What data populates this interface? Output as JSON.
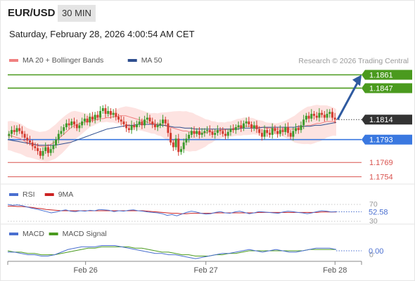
{
  "header": {
    "pair": "EUR/USD",
    "timeframe": "30 MIN",
    "datetime": "Saturday, February 28, 2026 4:00:54 AM CET"
  },
  "chart_data": [
    {
      "type": "candlestick",
      "legend": [
        {
          "label": "MA 20 + Bollinger Bands",
          "color": "#f08080"
        },
        {
          "label": "MA 50",
          "color": "#2f4f8f"
        }
      ],
      "watermark": "Research © 2026 Trading Central",
      "ylim": [
        1.175,
        1.1868
      ],
      "levels": [
        {
          "value": 1.1861,
          "label": "1.1861",
          "color": "#4a9a1e",
          "kind": "resistance"
        },
        {
          "value": 1.1847,
          "label": "1.1847",
          "color": "#4a9a1e",
          "kind": "resistance"
        },
        {
          "value": 1.1814,
          "label": "1.1814",
          "color": "#333333",
          "kind": "last"
        },
        {
          "value": 1.1793,
          "label": "1.1793",
          "color": "#3a78e0",
          "kind": "pivot"
        },
        {
          "value": 1.1769,
          "label": "1.1769",
          "color": "#d9534f",
          "kind": "support"
        },
        {
          "value": 1.1754,
          "label": "1.1754",
          "color": "#d9534f",
          "kind": "support"
        }
      ],
      "closes": [
        1.1799,
        1.1803,
        1.1801,
        1.1805,
        1.1802,
        1.1799,
        1.1795,
        1.1792,
        1.179,
        1.1786,
        1.1784,
        1.1781,
        1.1776,
        1.1781,
        1.1785,
        1.1779,
        1.1783,
        1.1787,
        1.1793,
        1.1799,
        1.1802,
        1.1806,
        1.181,
        1.1808,
        1.1812,
        1.1809,
        1.1805,
        1.1808,
        1.1812,
        1.1815,
        1.1811,
        1.1817,
        1.1814,
        1.1819,
        1.1816,
        1.1823,
        1.1826,
        1.182,
        1.1823,
        1.1819,
        1.1821,
        1.1817,
        1.1814,
        1.1812,
        1.1809,
        1.1805,
        1.1803,
        1.1808,
        1.1806,
        1.1809,
        1.1812,
        1.1808,
        1.1814,
        1.1816,
        1.1812,
        1.1809,
        1.1806,
        1.1808,
        1.181,
        1.1814,
        1.181,
        1.18,
        1.179,
        1.1785,
        1.1794,
        1.178,
        1.1783,
        1.179,
        1.1794,
        1.1798,
        1.1802,
        1.1799,
        1.1802,
        1.1798,
        1.18,
        1.1802,
        1.1803,
        1.1801,
        1.1798,
        1.18,
        1.1803,
        1.1802,
        1.1799,
        1.1797,
        1.1801,
        1.1804,
        1.1803,
        1.1806,
        1.1808,
        1.1805,
        1.181,
        1.1812,
        1.1809,
        1.1805,
        1.1808,
        1.1804,
        1.18,
        1.1796,
        1.1803,
        1.18,
        1.1798,
        1.1805,
        1.1802,
        1.1799,
        1.1803,
        1.1801,
        1.1806,
        1.18,
        1.1796,
        1.1802,
        1.1805,
        1.1803,
        1.1808,
        1.1814,
        1.1818,
        1.1815,
        1.182,
        1.1818,
        1.1816,
        1.1821,
        1.1819,
        1.1816,
        1.182,
        1.1822,
        1.1816,
        1.1814
      ],
      "ma20": [
        1.1797,
        1.1797,
        1.1796,
        1.1795,
        1.1794,
        1.1792,
        1.179,
        1.1789,
        1.1788,
        1.1787,
        1.1786,
        1.1786,
        1.1786,
        1.1787,
        1.1789,
        1.1791,
        1.1794,
        1.1797,
        1.18,
        1.1803,
        1.1806,
        1.1808,
        1.1809,
        1.181,
        1.1811,
        1.1812,
        1.1813,
        1.1813,
        1.1814,
        1.1815,
        1.1815,
        1.1816,
        1.1816,
        1.1817,
        1.1817,
        1.1818,
        1.1818,
        1.1818,
        1.1817,
        1.1816,
        1.1815,
        1.1814,
        1.1813,
        1.1812,
        1.1811,
        1.181,
        1.181,
        1.1809,
        1.1809,
        1.1808,
        1.1807,
        1.1806,
        1.1805,
        1.1804,
        1.1803,
        1.1802,
        1.1802,
        1.1801,
        1.1801,
        1.18,
        1.18,
        1.18,
        1.18,
        1.1801,
        1.1801,
        1.1802,
        1.1802,
        1.1803,
        1.1803,
        1.1804,
        1.1804,
        1.1805,
        1.1806,
        1.1806,
        1.1807,
        1.1807,
        1.1807,
        1.1807,
        1.1806,
        1.1806,
        1.1806,
        1.1805,
        1.1805,
        1.1805,
        1.1804,
        1.1804,
        1.1804,
        1.1804,
        1.1804,
        1.1804,
        1.1804,
        1.1805,
        1.1806,
        1.1807,
        1.1808,
        1.1808,
        1.1809,
        1.181,
        1.181,
        1.1811,
        1.1812,
        1.1812,
        1.1812,
        1.1811
      ],
      "ma50": [
        1.1793,
        1.1792,
        1.1791,
        1.179,
        1.1789,
        1.1788,
        1.1787,
        1.1787,
        1.1787,
        1.1787,
        1.1788,
        1.1789,
        1.179,
        1.1792,
        1.1794,
        1.1796,
        1.1798,
        1.18,
        1.1802,
        1.1804,
        1.1805,
        1.1806,
        1.1807,
        1.1808,
        1.1808,
        1.1809,
        1.1809,
        1.1809,
        1.1809,
        1.1808,
        1.1808,
        1.1807,
        1.1806,
        1.1806,
        1.1805,
        1.1805,
        1.1804,
        1.1804,
        1.1804,
        1.1804,
        1.1804,
        1.1804,
        1.1804,
        1.1804,
        1.1804,
        1.1805,
        1.1805,
        1.1805,
        1.1805,
        1.1806,
        1.1806,
        1.1806,
        1.1806,
        1.1806,
        1.1806,
        1.1806,
        1.1807,
        1.1807,
        1.1807,
        1.1808,
        1.1808,
        1.1809,
        1.181,
        1.1811
      ],
      "forecast": {
        "from": 1.1814,
        "to": 1.1861
      }
    },
    {
      "type": "line",
      "legend": [
        {
          "label": "RSI",
          "color": "#4a6fd0"
        },
        {
          "label": "9MA",
          "color": "#cc2222"
        }
      ],
      "ylim": [
        25,
        75
      ],
      "ticks": [
        {
          "value": 70,
          "label": "70"
        },
        {
          "value": 30,
          "label": "30"
        }
      ],
      "current": {
        "value": 52.58,
        "label": "52.58"
      },
      "rsi": [
        70,
        68,
        69,
        67,
        64,
        61,
        59,
        56,
        53,
        50,
        52,
        55,
        57,
        54,
        53,
        55,
        54,
        56,
        55,
        58,
        57,
        56,
        53,
        55,
        54,
        56,
        57,
        55,
        54,
        52,
        51,
        50,
        48,
        44,
        46,
        43,
        47,
        51,
        54,
        52,
        49,
        47,
        48,
        51,
        53,
        50,
        49,
        52,
        54,
        51,
        48,
        50,
        53,
        52,
        51,
        50,
        49,
        52,
        54,
        53,
        51,
        50,
        48,
        50,
        53,
        55,
        54,
        52,
        53
      ],
      "ma9": [
        66,
        66,
        65,
        65,
        64,
        63,
        61,
        60,
        58,
        57,
        56,
        55,
        55,
        55,
        55,
        55,
        55,
        55,
        55,
        55,
        55,
        55,
        55,
        55,
        55,
        55,
        55,
        55,
        55,
        54,
        53,
        52,
        51,
        50,
        49,
        49,
        48,
        48,
        49,
        49,
        49,
        49,
        49,
        50,
        50,
        50,
        50,
        50,
        50,
        50,
        50,
        50,
        51,
        51,
        51,
        51,
        51,
        51,
        51,
        51,
        51,
        51,
        51,
        51,
        51,
        52,
        52,
        52,
        52
      ]
    },
    {
      "type": "line",
      "legend": [
        {
          "label": "MACD",
          "color": "#4a6fd0"
        },
        {
          "label": "MACD Signal",
          "color": "#4a9a1e"
        }
      ],
      "ylim": [
        -0.0008,
        0.0008
      ],
      "ticks": [
        {
          "value": 0,
          "label": "0"
        }
      ],
      "current": {
        "value": 0.0,
        "label": "0.00"
      },
      "macd": [
        -0.0001,
        -0.0001,
        -0.0002,
        -0.0003,
        -0.0003,
        -0.0004,
        -0.0004,
        -0.0003,
        -0.0001,
        0.0001,
        0.0002,
        0.0003,
        0.0003,
        0.0003,
        0.0004,
        0.0004,
        0.0004,
        0.0003,
        0.0002,
        0.0001,
        0.0,
        -0.0001,
        -0.0002,
        -0.0002,
        -0.0003,
        -0.0003,
        -0.0004,
        -0.0005,
        -0.0006,
        -0.0005,
        -0.0004,
        -0.0003,
        -0.0002,
        -0.0002,
        -0.0001,
        0.0,
        0.0001,
        0.0,
        -0.0001,
        0.0,
        0.0001,
        0.0,
        -0.0001,
        -0.0001,
        0.0,
        0.0001,
        0.0002,
        0.0002,
        0.0002,
        0.0001
      ],
      "signal": [
        0.0,
        -0.0001,
        -0.0001,
        -0.0002,
        -0.0002,
        -0.0003,
        -0.0003,
        -0.0003,
        -0.0002,
        -0.0001,
        0.0,
        0.0001,
        0.0002,
        0.0002,
        0.0003,
        0.0003,
        0.0003,
        0.0003,
        0.0003,
        0.0002,
        0.0002,
        0.0001,
        0.0,
        -0.0001,
        -0.0001,
        -0.0002,
        -0.0003,
        -0.0003,
        -0.0004,
        -0.0004,
        -0.0004,
        -0.0003,
        -0.0003,
        -0.0002,
        -0.0002,
        -0.0001,
        0.0,
        0.0,
        0.0,
        0.0,
        0.0,
        0.0,
        0.0,
        0.0,
        0.0,
        0.0001,
        0.0001,
        0.0001,
        0.0001,
        0.0001
      ]
    }
  ],
  "x_axis": {
    "ticks": [
      {
        "label": "Feb 26",
        "pos": 0.22
      },
      {
        "label": "Feb 27",
        "pos": 0.56
      },
      {
        "label": "Feb 28",
        "pos": 0.925
      }
    ]
  }
}
